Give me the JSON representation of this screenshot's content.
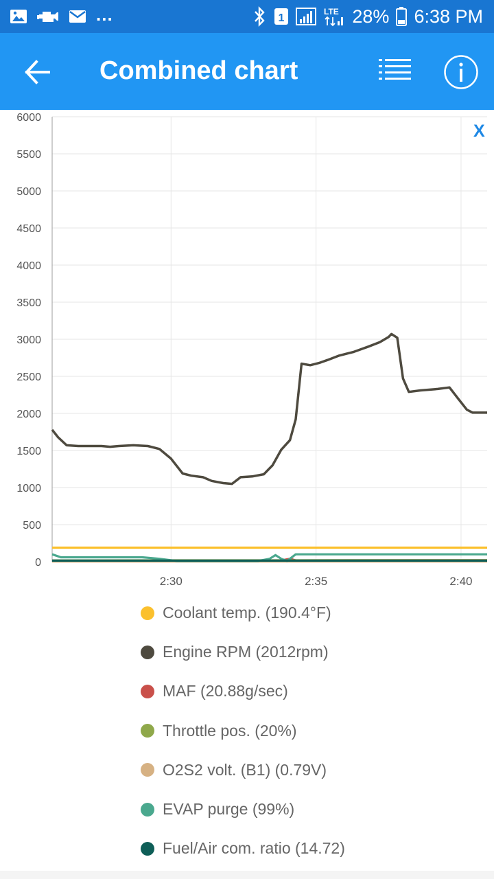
{
  "status_bar": {
    "left_icons": [
      "image-icon",
      "car-icon",
      "mail-icon"
    ],
    "dots": "...",
    "sim_badge": "1",
    "network": "LTE",
    "battery": "28%",
    "time": "6:38 PM"
  },
  "app_bar": {
    "title": "Combined chart",
    "back_icon": "arrow-back-icon",
    "list_icon": "list-icon",
    "info_icon": "info-icon"
  },
  "chart": {
    "close_label": "X",
    "accent": "#1e88e5"
  },
  "chart_data": {
    "type": "line",
    "title": "",
    "xlabel": "",
    "ylabel": "",
    "ylim": [
      0,
      6000
    ],
    "yticks": [
      "6000",
      "5500",
      "5000",
      "4500",
      "4000",
      "3500",
      "3000",
      "2500",
      "2000",
      "1500",
      "1000",
      "500",
      "0"
    ],
    "xticks": [
      "2:30",
      "2:35",
      "2:40"
    ],
    "xlim_minutes": [
      25.9,
      40.9
    ],
    "grid": true,
    "legend_placement": "bottom",
    "series": [
      {
        "name": "Coolant temp. (190.4°F)",
        "color": "#fbc02d",
        "points": [
          [
            25.9,
            190
          ],
          [
            40.9,
            190
          ]
        ]
      },
      {
        "name": "Engine RPM (2012rpm)",
        "color": "#4e4a3f",
        "points": [
          [
            25.9,
            1780
          ],
          [
            26.1,
            1680
          ],
          [
            26.4,
            1570
          ],
          [
            26.8,
            1560
          ],
          [
            27.6,
            1560
          ],
          [
            27.9,
            1550
          ],
          [
            28.2,
            1560
          ],
          [
            28.7,
            1570
          ],
          [
            29.2,
            1560
          ],
          [
            29.6,
            1520
          ],
          [
            30.0,
            1390
          ],
          [
            30.4,
            1190
          ],
          [
            30.7,
            1160
          ],
          [
            31.1,
            1140
          ],
          [
            31.4,
            1090
          ],
          [
            31.8,
            1060
          ],
          [
            32.1,
            1050
          ],
          [
            32.4,
            1140
          ],
          [
            32.8,
            1150
          ],
          [
            33.2,
            1180
          ],
          [
            33.5,
            1300
          ],
          [
            33.8,
            1510
          ],
          [
            34.1,
            1640
          ],
          [
            34.3,
            1920
          ],
          [
            34.5,
            2670
          ],
          [
            34.8,
            2650
          ],
          [
            35.1,
            2680
          ],
          [
            35.4,
            2720
          ],
          [
            35.8,
            2780
          ],
          [
            36.3,
            2830
          ],
          [
            36.8,
            2900
          ],
          [
            37.2,
            2960
          ],
          [
            37.5,
            3030
          ],
          [
            37.6,
            3070
          ],
          [
            37.8,
            3020
          ],
          [
            38.0,
            2470
          ],
          [
            38.2,
            2290
          ],
          [
            38.6,
            2310
          ],
          [
            39.2,
            2330
          ],
          [
            39.6,
            2350
          ],
          [
            39.9,
            2200
          ],
          [
            40.2,
            2050
          ],
          [
            40.4,
            2010
          ],
          [
            40.9,
            2010
          ]
        ]
      },
      {
        "name": "MAF (20.88g/sec)",
        "color": "#c9504a",
        "points": [
          [
            25.9,
            15
          ],
          [
            33.8,
            18
          ],
          [
            34.1,
            40
          ],
          [
            34.3,
            18
          ],
          [
            40.9,
            20
          ]
        ]
      },
      {
        "name": "Throttle pos. (20%)",
        "color": "#8fa84a",
        "points": [
          [
            25.9,
            18
          ],
          [
            40.9,
            20
          ]
        ]
      },
      {
        "name": "O2S2 volt. (B1) (0.79V)",
        "color": "#d6b183",
        "points": [
          [
            25.9,
            3
          ],
          [
            40.9,
            3
          ]
        ]
      },
      {
        "name": "EVAP purge (99%)",
        "color": "#4aa88e",
        "points": [
          [
            25.9,
            100
          ],
          [
            26.2,
            60
          ],
          [
            27.8,
            60
          ],
          [
            29.0,
            60
          ],
          [
            29.6,
            40
          ],
          [
            30.2,
            10
          ],
          [
            33.0,
            10
          ],
          [
            33.4,
            40
          ],
          [
            33.6,
            90
          ],
          [
            33.8,
            40
          ],
          [
            34.0,
            10
          ],
          [
            34.3,
            100
          ],
          [
            40.9,
            100
          ]
        ]
      },
      {
        "name": "Fuel/Air com. ratio (14.72)",
        "color": "#0e5e57",
        "points": [
          [
            25.9,
            15
          ],
          [
            40.9,
            15
          ]
        ]
      }
    ]
  }
}
